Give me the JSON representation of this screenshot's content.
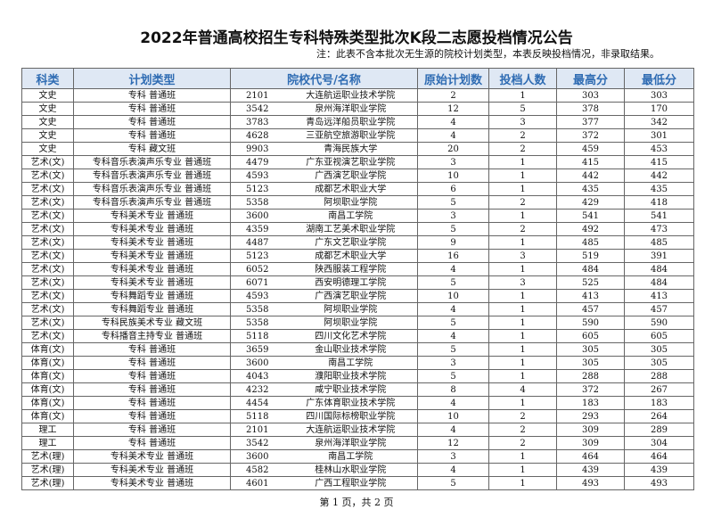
{
  "header": {
    "title": "2022年普通高校招生专科特殊类型批次K段二志愿投档情况公告",
    "note": "注：此表不含本批次无生源的院校计划类型，本表反映投档情况，非录取结果。"
  },
  "table": {
    "columns": [
      "科类",
      "计划类型",
      "院校代号/名称",
      "原始计划数",
      "投档人数",
      "最高分",
      "最低分"
    ],
    "rows": [
      [
        "文史",
        "专科 普通班",
        "2101",
        "大连航运职业技术学院",
        2,
        1,
        303,
        303
      ],
      [
        "文史",
        "专科 普通班",
        "3542",
        "泉州海洋职业学院",
        12,
        5,
        378,
        170
      ],
      [
        "文史",
        "专科 普通班",
        "3783",
        "青岛远洋船员职业学院",
        4,
        3,
        377,
        342
      ],
      [
        "文史",
        "专科 普通班",
        "4628",
        "三亚航空旅游职业学院",
        4,
        2,
        372,
        301
      ],
      [
        "文史",
        "专科 藏文班",
        "9903",
        "青海民族大学",
        20,
        2,
        459,
        453
      ],
      [
        "艺术(文)",
        "专科音乐表演声乐专业 普通班",
        "4479",
        "广东亚视演艺职业学院",
        3,
        1,
        415,
        415
      ],
      [
        "艺术(文)",
        "专科音乐表演声乐专业 普通班",
        "4593",
        "广西演艺职业学院",
        10,
        1,
        442,
        442
      ],
      [
        "艺术(文)",
        "专科音乐表演声乐专业 普通班",
        "5123",
        "成都艺术职业大学",
        6,
        1,
        435,
        435
      ],
      [
        "艺术(文)",
        "专科音乐表演声乐专业 普通班",
        "5358",
        "阿坝职业学院",
        5,
        2,
        429,
        418
      ],
      [
        "艺术(文)",
        "专科美术专业 普通班",
        "3600",
        "南昌工学院",
        3,
        1,
        541,
        541
      ],
      [
        "艺术(文)",
        "专科美术专业 普通班",
        "4359",
        "湖南工艺美术职业学院",
        5,
        2,
        492,
        473
      ],
      [
        "艺术(文)",
        "专科美术专业 普通班",
        "4487",
        "广东文艺职业学院",
        9,
        1,
        485,
        485
      ],
      [
        "艺术(文)",
        "专科美术专业 普通班",
        "5123",
        "成都艺术职业大学",
        16,
        3,
        519,
        391
      ],
      [
        "艺术(文)",
        "专科美术专业 普通班",
        "6052",
        "陕西服装工程学院",
        4,
        1,
        484,
        484
      ],
      [
        "艺术(文)",
        "专科美术专业 普通班",
        "6071",
        "西安明德理工学院",
        5,
        3,
        525,
        484
      ],
      [
        "艺术(文)",
        "专科舞蹈专业 普通班",
        "4593",
        "广西演艺职业学院",
        10,
        1,
        413,
        413
      ],
      [
        "艺术(文)",
        "专科舞蹈专业 普通班",
        "5358",
        "阿坝职业学院",
        4,
        1,
        457,
        457
      ],
      [
        "艺术(文)",
        "专科民族美术专业 藏文班",
        "5358",
        "阿坝职业学院",
        5,
        1,
        590,
        590
      ],
      [
        "艺术(文)",
        "专科播音主持专业 普通班",
        "5118",
        "四川文化艺术学院",
        4,
        1,
        605,
        605
      ],
      [
        "体育(文)",
        "专科 普通班",
        "3659",
        "金山职业技术学院",
        5,
        1,
        305,
        305
      ],
      [
        "体育(文)",
        "专科 普通班",
        "3600",
        "南昌工学院",
        3,
        1,
        305,
        305
      ],
      [
        "体育(文)",
        "专科 普通班",
        "4043",
        "濮阳职业技术学院",
        5,
        1,
        288,
        288
      ],
      [
        "体育(文)",
        "专科 普通班",
        "4232",
        "咸宁职业技术学院",
        8,
        4,
        372,
        267
      ],
      [
        "体育(文)",
        "专科 普通班",
        "4454",
        "广东体育职业技术学院",
        4,
        1,
        183,
        183
      ],
      [
        "体育(文)",
        "专科 普通班",
        "5118",
        "四川国际标榜职业学院",
        10,
        2,
        293,
        264
      ],
      [
        "理工",
        "专科 普通班",
        "2101",
        "大连航运职业技术学院",
        4,
        2,
        309,
        289
      ],
      [
        "理工",
        "专科 普通班",
        "3542",
        "泉州海洋职业学院",
        12,
        2,
        309,
        304
      ],
      [
        "艺术(理)",
        "专科美术专业 普通班",
        "3600",
        "南昌工学院",
        3,
        1,
        464,
        464
      ],
      [
        "艺术(理)",
        "专科美术专业 普通班",
        "4582",
        "桂林山水职业学院",
        4,
        1,
        439,
        439
      ],
      [
        "艺术(理)",
        "专科美术专业 普通班",
        "4601",
        "广西工程职业学院",
        5,
        1,
        493,
        493
      ]
    ]
  },
  "footer": "第 1 页，共 2 页"
}
